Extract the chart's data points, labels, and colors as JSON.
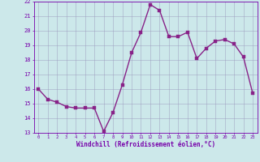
{
  "x": [
    0,
    1,
    2,
    3,
    4,
    5,
    6,
    7,
    8,
    9,
    10,
    11,
    12,
    13,
    14,
    15,
    16,
    17,
    18,
    19,
    20,
    21,
    22,
    23
  ],
  "y": [
    16.0,
    15.3,
    15.1,
    14.8,
    14.7,
    14.7,
    14.7,
    13.1,
    14.4,
    16.3,
    18.5,
    19.9,
    21.8,
    21.4,
    19.6,
    19.6,
    19.9,
    18.1,
    18.8,
    19.3,
    19.4,
    19.1,
    18.2,
    15.7
  ],
  "line_color": "#882288",
  "marker_color": "#882288",
  "bg_color": "#cce8ea",
  "grid_color": "#9999bb",
  "xlabel": "Windchill (Refroidissement éolien,°C)",
  "xlim": [
    -0.5,
    23.5
  ],
  "ylim": [
    13,
    22
  ],
  "yticks": [
    13,
    14,
    15,
    16,
    17,
    18,
    19,
    20,
    21,
    22
  ],
  "xticks": [
    0,
    1,
    2,
    3,
    4,
    5,
    6,
    7,
    8,
    9,
    10,
    11,
    12,
    13,
    14,
    15,
    16,
    17,
    18,
    19,
    20,
    21,
    22,
    23
  ],
  "font_color": "#7700aa",
  "line_width": 1.0,
  "marker_size": 2.5
}
